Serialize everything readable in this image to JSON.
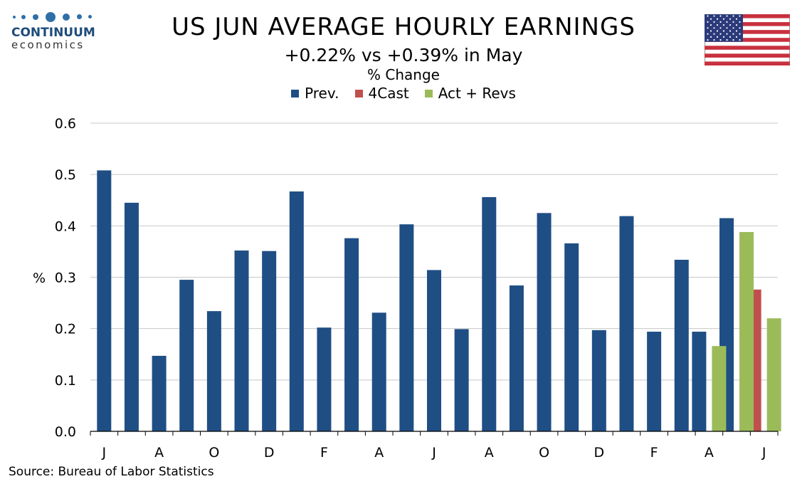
{
  "logo": {
    "name": "CONTINUUM",
    "sub": "economics"
  },
  "chart_data": {
    "type": "bar",
    "title": "US JUN AVERAGE HOURLY EARNINGS",
    "subtitle": "+0.22% vs +0.39% in May",
    "unit_title": "% Change",
    "ylabel": "%",
    "ylim": [
      0,
      0.6
    ],
    "yticks": [
      "0.0",
      "0.1",
      "0.2",
      "0.3",
      "0.4",
      "0.5",
      "0.6"
    ],
    "grid": true,
    "legend_position": "top-center",
    "x_tick_labels": [
      "J",
      "A",
      "O",
      "D",
      "F",
      "A",
      "J",
      "A",
      "O",
      "D",
      "F",
      "A",
      "J"
    ],
    "series": [
      {
        "name": "Prev.",
        "color": "#1f4e85",
        "values": [
          0.508,
          0.445,
          0.147,
          0.295,
          0.234,
          0.352,
          0.351,
          0.467,
          0.202,
          0.376,
          0.231,
          0.403,
          0.314,
          0.199,
          0.456,
          0.284,
          0.425,
          0.366,
          0.197,
          0.419,
          0.194,
          0.334,
          0.194,
          0.415,
          null
        ]
      },
      {
        "name": "4Cast",
        "color": "#c0504d",
        "values": [
          null,
          null,
          null,
          null,
          null,
          null,
          null,
          null,
          null,
          null,
          null,
          null,
          null,
          null,
          null,
          null,
          null,
          null,
          null,
          null,
          null,
          null,
          null,
          null,
          0.276
        ]
      },
      {
        "name": "Act + Revs",
        "color": "#9bbb59",
        "values": [
          null,
          null,
          null,
          null,
          null,
          null,
          null,
          null,
          null,
          null,
          null,
          null,
          null,
          null,
          null,
          null,
          null,
          null,
          null,
          null,
          null,
          null,
          0.166,
          0.388,
          0.22
        ]
      }
    ],
    "source": "Source: Bureau of Labor Statistics"
  }
}
